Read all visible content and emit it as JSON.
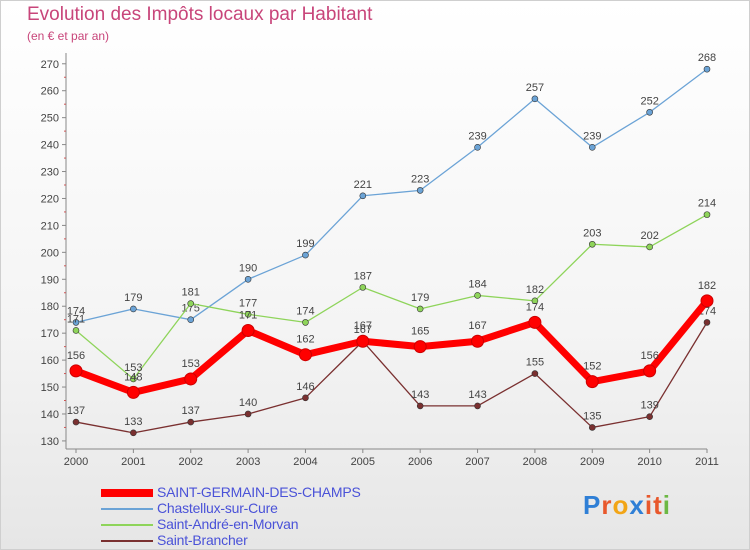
{
  "title": "Evolution des Impôts locaux par Habitant",
  "subtitle": "(en € et par an)",
  "logo": {
    "letters": [
      "P",
      "r",
      "o",
      "x",
      "i",
      "t",
      "i"
    ],
    "colors": [
      "#2f7fd6",
      "#e8582c",
      "#f2a516",
      "#2f7fd6",
      "#e8582c",
      "#e8582c",
      "#6cb844"
    ]
  },
  "chart_data": {
    "type": "line",
    "x": [
      "2000",
      "2001",
      "2002",
      "2003",
      "2004",
      "2005",
      "2006",
      "2007",
      "2008",
      "2009",
      "2010",
      "2011"
    ],
    "yticks": [
      130,
      140,
      150,
      160,
      170,
      180,
      190,
      200,
      210,
      220,
      230,
      240,
      250,
      260,
      270
    ],
    "ylim": [
      127,
      274
    ],
    "grid": false,
    "legend_position": "bottom-left",
    "series": [
      {
        "name": "SAINT-GERMAIN-DES-CHAMPS",
        "color": "#ff0000",
        "values": [
          156,
          148,
          153,
          171,
          162,
          167,
          165,
          167,
          174,
          152,
          156,
          182
        ],
        "labels": [
          "156",
          "148",
          "153",
          "171",
          "162",
          "167",
          "165",
          "167",
          "174",
          "152",
          "156",
          "182"
        ]
      },
      {
        "name": "Chastellux-sur-Cure",
        "color": "#6ba3d6",
        "values": [
          174,
          179,
          175,
          190,
          199,
          221,
          223,
          239,
          257,
          239,
          252,
          268
        ],
        "labels": [
          "174",
          "179",
          "175",
          "190",
          "199",
          "221",
          "223",
          "239",
          "257",
          "239",
          "252",
          "268"
        ]
      },
      {
        "name": "Saint-André-en-Morvan",
        "color": "#8ed45a",
        "values": [
          171,
          153,
          181,
          177,
          174,
          187,
          179,
          184,
          182,
          203,
          202,
          214
        ],
        "labels": [
          "171",
          "153",
          "181",
          "177",
          "174",
          "187",
          "179",
          "184",
          "182",
          "203",
          "202",
          "214"
        ]
      },
      {
        "name": "Saint-Brancher",
        "color": "#7a3030",
        "values": [
          137,
          133,
          137,
          140,
          146,
          167,
          143,
          143,
          155,
          135,
          139,
          174
        ],
        "labels": [
          "137",
          "133",
          "137",
          "140",
          "146",
          "167",
          "143",
          "143",
          "155",
          "135",
          "139",
          "174"
        ]
      }
    ]
  }
}
